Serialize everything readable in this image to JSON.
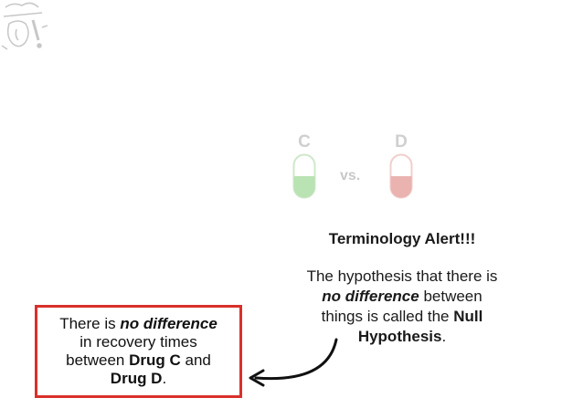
{
  "alert": {
    "title": "Terminology Alert!!!",
    "line1": "The hypothesis that there is",
    "line2_emph": "no difference",
    "line2_rest": " between",
    "line3_prefix": "things is called the ",
    "line3_bold": "Null",
    "line4_bold": "Hypothesis",
    "line4_rest": "."
  },
  "comparison": {
    "pill_c_label": "C",
    "pill_d_label": "D",
    "vs_label": "vs.",
    "pill_c_color": "#b9e3b2",
    "pill_d_color": "#eab3b0"
  },
  "statement": {
    "prefix": "There is ",
    "emph": "no difference",
    "line2": "in recovery times",
    "line3_prefix": "between ",
    "drug_c": "Drug C",
    "line3_suffix": " and",
    "drug_d": "Drug D",
    "end": "."
  },
  "colors": {
    "box_border": "#d9302a",
    "text": "#111111"
  },
  "icons": {
    "logo": "comic-burst-logo-icon",
    "arrow": "curved-arrow-icon"
  }
}
